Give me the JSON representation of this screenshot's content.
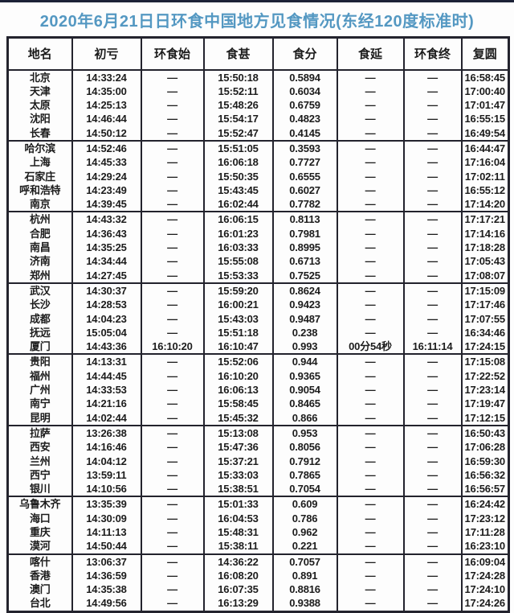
{
  "title": "2020年6月21日日环食中国地方见食情况(东经120度标准时)",
  "colors": {
    "title": "#5498c2",
    "border": "#23232d",
    "text": "#1c1c1c",
    "background": "#fdfdfd",
    "top_line": "#1c2237"
  },
  "empty_marker": "—",
  "table": {
    "headers": [
      "地名",
      "初亏",
      "环食始",
      "食甚",
      "食分",
      "食延",
      "环食终",
      "复圆"
    ],
    "groups": [
      {
        "rows": [
          [
            "北京",
            "14:33:24",
            "—",
            "15:50:18",
            "0.5894",
            "—",
            "—",
            "16:58:45"
          ],
          [
            "天津",
            "14:35:00",
            "—",
            "15:52:11",
            "0.6034",
            "—",
            "—",
            "17:00:40"
          ],
          [
            "太原",
            "14:25:13",
            "—",
            "15:48:26",
            "0.6759",
            "—",
            "—",
            "17:01:47"
          ],
          [
            "沈阳",
            "14:46:44",
            "—",
            "15:54:17",
            "0.4823",
            "—",
            "—",
            "16:55:15"
          ],
          [
            "长春",
            "14:50:12",
            "—",
            "15:52:47",
            "0.4145",
            "—",
            "—",
            "16:49:54"
          ]
        ]
      },
      {
        "rows": [
          [
            "哈尔滨",
            "14:52:46",
            "—",
            "15:51:05",
            "0.3593",
            "—",
            "—",
            "16:44:47"
          ],
          [
            "上海",
            "14:45:33",
            "—",
            "16:06:18",
            "0.7727",
            "—",
            "—",
            "17:16:04"
          ],
          [
            "石家庄",
            "14:29:24",
            "—",
            "15:50:35",
            "0.6555",
            "—",
            "—",
            "17:02:11"
          ],
          [
            "呼和浩特",
            "14:23:49",
            "—",
            "15:43:45",
            "0.6027",
            "—",
            "—",
            "16:55:12"
          ],
          [
            "南京",
            "14:39:45",
            "—",
            "16:02:44",
            "0.7782",
            "—",
            "—",
            "17:14:20"
          ]
        ]
      },
      {
        "rows": [
          [
            "杭州",
            "14:43:32",
            "—",
            "16:06:15",
            "0.8113",
            "—",
            "—",
            "17:17:21"
          ],
          [
            "合肥",
            "14:36:43",
            "—",
            "16:01:23",
            "0.7981",
            "—",
            "—",
            "17:14:16"
          ],
          [
            "南昌",
            "14:35:25",
            "—",
            "16:03:33",
            "0.8995",
            "—",
            "—",
            "17:18:28"
          ],
          [
            "济南",
            "14:34:44",
            "—",
            "15:55:08",
            "0.6713",
            "—",
            "—",
            "17:05:43"
          ],
          [
            "郑州",
            "14:27:45",
            "—",
            "15:53:33",
            "0.7525",
            "—",
            "—",
            "17:08:07"
          ]
        ]
      },
      {
        "rows": [
          [
            "武汉",
            "14:30:37",
            "—",
            "15:59:20",
            "0.8624",
            "—",
            "—",
            "17:15:09"
          ],
          [
            "长沙",
            "14:28:53",
            "—",
            "16:00:21",
            "0.9423",
            "—",
            "—",
            "17:17:46"
          ],
          [
            "成都",
            "14:04:23",
            "—",
            "15:43:03",
            "0.9487",
            "—",
            "—",
            "17:07:55"
          ],
          [
            "抚远",
            "15:05:04",
            "—",
            "15:51:18",
            "0.238",
            "—",
            "—",
            "16:34:46"
          ],
          [
            "厦门",
            "14:43:36",
            "16:10:20",
            "16:10:47",
            "0.993",
            "00分54秒",
            "16:11:14",
            "17:24:15"
          ]
        ]
      },
      {
        "rows": [
          [
            "贵阳",
            "14:13:31",
            "—",
            "15:52:06",
            "0.944",
            "—",
            "—",
            "17:15:08"
          ],
          [
            "福州",
            "14:44:45",
            "—",
            "16:10:20",
            "0.9365",
            "—",
            "—",
            "17:22:52"
          ],
          [
            "广州",
            "14:33:53",
            "—",
            "16:06:13",
            "0.9054",
            "—",
            "—",
            "17:23:14"
          ],
          [
            "南宁",
            "14:21:16",
            "—",
            "15:58:45",
            "0.8465",
            "—",
            "—",
            "17:19:47"
          ],
          [
            "昆明",
            "14:02:44",
            "—",
            "15:45:32",
            "0.866",
            "—",
            "—",
            "17:12:15"
          ]
        ]
      },
      {
        "rows": [
          [
            "拉萨",
            "13:26:38",
            "—",
            "15:13:08",
            "0.953",
            "—",
            "—",
            "16:50:43"
          ],
          [
            "西安",
            "14:16:46",
            "—",
            "15:47:36",
            "0.8056",
            "—",
            "—",
            "17:06:28"
          ],
          [
            "兰州",
            "14:04:12",
            "—",
            "15:37:21",
            "0.7912",
            "—",
            "—",
            "16:59:30"
          ],
          [
            "西宁",
            "13:59:11",
            "—",
            "15:33:03",
            "0.7865",
            "—",
            "—",
            "16:56:32"
          ],
          [
            "银川",
            "14:10:56",
            "—",
            "15:38:51",
            "0.7054",
            "—",
            "—",
            "16:56:57"
          ]
        ]
      },
      {
        "rows": [
          [
            "乌鲁木齐",
            "13:35:39",
            "—",
            "15:01:33",
            "0.609",
            "—",
            "—",
            "16:24:42"
          ],
          [
            "海口",
            "14:30:09",
            "—",
            "16:04:53",
            "0.786",
            "—",
            "—",
            "17:23:12"
          ],
          [
            "重庆",
            "14:11:13",
            "—",
            "15:48:31",
            "0.962",
            "—",
            "—",
            "17:11:28"
          ],
          [
            "漠河",
            "14:50:44",
            "—",
            "15:38:11",
            "0.221",
            "—",
            "—",
            "16:23:10"
          ]
        ]
      },
      {
        "rows": [
          [
            "喀什",
            "13:06:37",
            "—",
            "14:36:22",
            "0.7057",
            "—",
            "—",
            "16:09:04"
          ],
          [
            "香港",
            "14:36:59",
            "—",
            "16:08:20",
            "0.891",
            "—",
            "—",
            "17:24:28"
          ],
          [
            "澳门",
            "14:35:38",
            "—",
            "16:07:35",
            "0.8816",
            "—",
            "—",
            "17:24:10"
          ],
          [
            "台北",
            "14:49:56",
            "—",
            "16:13:29",
            "0.9388",
            "—",
            "—",
            "17:24:26"
          ]
        ]
      }
    ]
  }
}
